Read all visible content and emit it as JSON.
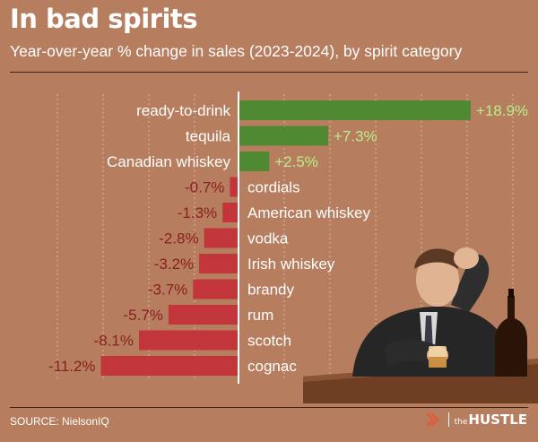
{
  "header": {
    "title": "In bad spirits",
    "subtitle": "Year-over-year % change in sales (2023-2024), by spirit category"
  },
  "footer": {
    "source": "SOURCE: NielsonIQ",
    "brand_the": "the",
    "brand_name": "HUSTLE"
  },
  "colors": {
    "background": "#b67d5e",
    "positive": "#4f8a32",
    "negative": "#c1353b",
    "positive_label": "#b7f08a",
    "negative_label": "#8b1f22",
    "category_label": "#ffffff"
  },
  "chart_data": {
    "type": "bar",
    "orientation": "horizontal",
    "title": "In bad spirits",
    "subtitle": "Year-over-year % change in sales (2023-2024), by spirit category",
    "categories": [
      "ready-to-drink",
      "tequila",
      "Canadian whiskey",
      "cordials",
      "American whiskey",
      "vodka",
      "Irish whiskey",
      "brandy",
      "rum",
      "scotch",
      "cognac"
    ],
    "values": [
      18.9,
      7.3,
      2.5,
      -0.7,
      -1.3,
      -2.8,
      -3.2,
      -3.7,
      -5.7,
      -8.1,
      -11.2
    ],
    "value_labels": [
      "+18.9%",
      "+7.3%",
      "+2.5%",
      "-0.7%",
      "-1.3%",
      "-2.8%",
      "-3.2%",
      "-3.7%",
      "-5.7%",
      "-8.1%",
      "-11.2%"
    ],
    "xlim": [
      -11.2,
      18.9
    ],
    "grid": true,
    "legend": "none"
  },
  "photo": {
    "subject": "man-with-whiskey-glass",
    "suit_color": "#2b2b2b",
    "table_color": "#7a4a2c",
    "bottle_color": "#2a1408"
  }
}
